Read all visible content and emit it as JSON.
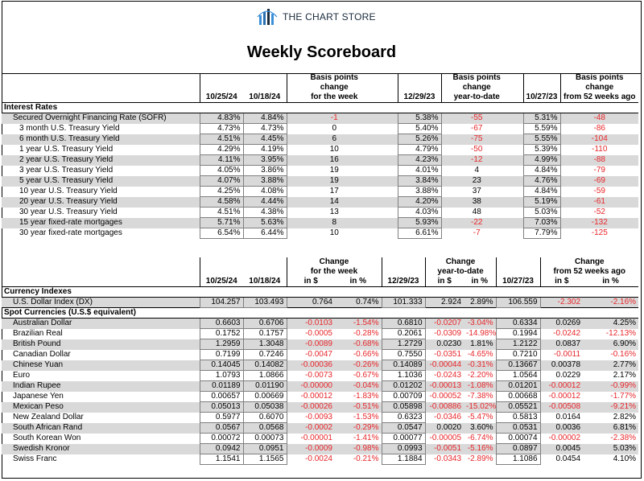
{
  "brand": {
    "name": "THE CHART STORE",
    "icon": "bar-chart-logo-icon"
  },
  "title": "Weekly Scoreboard",
  "table1": {
    "headers": {
      "col_a": "10/25/24",
      "col_b": "10/18/24",
      "bp_week_l1": "Basis points",
      "bp_week_l2": "change",
      "bp_week_l3": "for the week",
      "col_c": "12/29/23",
      "bp_ytd_l1": "Basis points",
      "bp_ytd_l2": "change",
      "bp_ytd_l3": "year-to-date",
      "col_d": "10/27/23",
      "bp_52_l1": "Basis points",
      "bp_52_l2": "change",
      "bp_52_l3": "from 52 weeks ago"
    },
    "section": "Interest Rates",
    "rows": [
      {
        "name": "Secured Overnight Financing Rate (SOFR)",
        "a": "4.83%",
        "b": "4.84%",
        "w": "-1",
        "c": "5.38%",
        "ytd": "-55",
        "d": "5.31%",
        "y52": "-48"
      },
      {
        "name": "3 month U.S. Treasury Yield",
        "a": "4.73%",
        "b": "4.73%",
        "w": "0",
        "c": "5.40%",
        "ytd": "-67",
        "d": "5.59%",
        "y52": "-86"
      },
      {
        "name": "6 month U.S. Treasury Yield",
        "a": "4.51%",
        "b": "4.45%",
        "w": "6",
        "c": "5.26%",
        "ytd": "-75",
        "d": "5.55%",
        "y52": "-104"
      },
      {
        "name": "1 year U.S. Treasury Yield",
        "a": "4.29%",
        "b": "4.19%",
        "w": "10",
        "c": "4.79%",
        "ytd": "-50",
        "d": "5.39%",
        "y52": "-110"
      },
      {
        "name": "2 year U.S. Treasury Yield",
        "a": "4.11%",
        "b": "3.95%",
        "w": "16",
        "c": "4.23%",
        "ytd": "-12",
        "d": "4.99%",
        "y52": "-88"
      },
      {
        "name": "3 year U.S. Treasury Yield",
        "a": "4.05%",
        "b": "3.86%",
        "w": "19",
        "c": "4.01%",
        "ytd": "4",
        "d": "4.84%",
        "y52": "-79"
      },
      {
        "name": "5 year U.S. Treasury Yield",
        "a": "4.07%",
        "b": "3.88%",
        "w": "19",
        "c": "3.84%",
        "ytd": "23",
        "d": "4.76%",
        "y52": "-69"
      },
      {
        "name": "10 year U.S. Treasury Yield",
        "a": "4.25%",
        "b": "4.08%",
        "w": "17",
        "c": "3.88%",
        "ytd": "37",
        "d": "4.84%",
        "y52": "-59"
      },
      {
        "name": "20 year U.S. Treasury Yield",
        "a": "4.58%",
        "b": "4.44%",
        "w": "14",
        "c": "4.20%",
        "ytd": "38",
        "d": "5.19%",
        "y52": "-61"
      },
      {
        "name": "30 year U.S. Treasury Yield",
        "a": "4.51%",
        "b": "4.38%",
        "w": "13",
        "c": "4.03%",
        "ytd": "48",
        "d": "5.03%",
        "y52": "-52"
      },
      {
        "name": "15 year fixed-rate mortgages",
        "a": "5.71%",
        "b": "5.63%",
        "w": "8",
        "c": "5.93%",
        "ytd": "-22",
        "d": "7.03%",
        "y52": "-132"
      },
      {
        "name": "30 year fixed-rate mortgages",
        "a": "6.54%",
        "b": "6.44%",
        "w": "10",
        "c": "6.61%",
        "ytd": "-7",
        "d": "7.79%",
        "y52": "-125"
      }
    ]
  },
  "table2": {
    "headers": {
      "col_a": "10/25/24",
      "col_b": "10/18/24",
      "chg_week_l1": "Change",
      "chg_week_l2": "for the week",
      "in_usd": "in $",
      "in_pct": "in %",
      "col_c": "12/29/23",
      "chg_ytd_l1": "Change",
      "chg_ytd_l2": "year-to-date",
      "col_d": "10/27/23",
      "chg_52_l1": "Change",
      "chg_52_l2": "from 52 weeks ago"
    },
    "section_indexes": "Currency Indexes",
    "dx": {
      "name": "U.S. Dollar Index (DX)",
      "a": "104.257",
      "b": "103.493",
      "wd": "0.764",
      "wp": "0.74%",
      "c": "101.333",
      "yd": "2.924",
      "yp": "2.89%",
      "d": "106.559",
      "fd": "-2.302",
      "fp": "-2.16%"
    },
    "section_spot": "Spot Currencies (U.S.$ equivalent)",
    "rows": [
      {
        "name": "Australian Dollar",
        "a": "0.6603",
        "b": "0.6706",
        "wd": "-0.0103",
        "wp": "-1.54%",
        "c": "0.6810",
        "yd": "-0.0207",
        "yp": "-3.04%",
        "d": "0.6334",
        "fd": "0.0269",
        "fp": "4.25%"
      },
      {
        "name": "Brazilian Real",
        "a": "0.1752",
        "b": "0.1757",
        "wd": "-0.0005",
        "wp": "-0.28%",
        "c": "0.2061",
        "yd": "-0.0309",
        "yp": "-14.98%",
        "d": "0.1994",
        "fd": "-0.0242",
        "fp": "-12.13%"
      },
      {
        "name": "British Pound",
        "a": "1.2959",
        "b": "1.3048",
        "wd": "-0.0089",
        "wp": "-0.68%",
        "c": "1.2729",
        "yd": "0.0230",
        "yp": "1.81%",
        "d": "1.2122",
        "fd": "0.0837",
        "fp": "6.90%"
      },
      {
        "name": "Canadian Dollar",
        "a": "0.7199",
        "b": "0.7246",
        "wd": "-0.0047",
        "wp": "-0.66%",
        "c": "0.7550",
        "yd": "-0.0351",
        "yp": "-4.65%",
        "d": "0.7210",
        "fd": "-0.0011",
        "fp": "-0.16%"
      },
      {
        "name": "Chinese Yuan",
        "a": "0.14045",
        "b": "0.14082",
        "wd": "-0.00036",
        "wp": "-0.26%",
        "c": "0.14089",
        "yd": "-0.00044",
        "yp": "-0.31%",
        "d": "0.13667",
        "fd": "0.00378",
        "fp": "2.77%"
      },
      {
        "name": "Euro",
        "a": "1.0793",
        "b": "1.0866",
        "wd": "-0.0073",
        "wp": "-0.67%",
        "c": "1.1036",
        "yd": "-0.0243",
        "yp": "-2.20%",
        "d": "1.0564",
        "fd": "0.0229",
        "fp": "2.17%"
      },
      {
        "name": "Indian Rupee",
        "a": "0.01189",
        "b": "0.01190",
        "wd": "-0.00000",
        "wp": "-0.04%",
        "c": "0.01202",
        "yd": "-0.00013",
        "yp": "-1.08%",
        "d": "0.01201",
        "fd": "-0.00012",
        "fp": "-0.99%"
      },
      {
        "name": "Japanese Yen",
        "a": "0.00657",
        "b": "0.00669",
        "wd": "-0.00012",
        "wp": "-1.83%",
        "c": "0.00709",
        "yd": "-0.00052",
        "yp": "-7.38%",
        "d": "0.00668",
        "fd": "-0.00012",
        "fp": "-1.77%"
      },
      {
        "name": "Mexican Peso",
        "a": "0.05013",
        "b": "0.05038",
        "wd": "-0.00026",
        "wp": "-0.51%",
        "c": "0.05898",
        "yd": "-0.00886",
        "yp": "-15.02%",
        "d": "0.05521",
        "fd": "-0.00508",
        "fp": "-9.21%"
      },
      {
        "name": "New Zealand Dollar",
        "a": "0.5977",
        "b": "0.6070",
        "wd": "-0.0093",
        "wp": "-1.53%",
        "c": "0.6323",
        "yd": "-0.0346",
        "yp": "-5.47%",
        "d": "0.5813",
        "fd": "0.0164",
        "fp": "2.82%"
      },
      {
        "name": "South African Rand",
        "a": "0.0567",
        "b": "0.0568",
        "wd": "-0.0002",
        "wp": "-0.29%",
        "c": "0.0547",
        "yd": "0.0020",
        "yp": "3.60%",
        "d": "0.0531",
        "fd": "0.0036",
        "fp": "6.81%"
      },
      {
        "name": "South Korean Won",
        "a": "0.00072",
        "b": "0.00073",
        "wd": "-0.00001",
        "wp": "-1.41%",
        "c": "0.00077",
        "yd": "-0.00005",
        "yp": "-6.74%",
        "d": "0.00074",
        "fd": "-0.00002",
        "fp": "-2.38%"
      },
      {
        "name": "Swedish Kronor",
        "a": "0.0942",
        "b": "0.0951",
        "wd": "-0.0009",
        "wp": "-0.98%",
        "c": "0.0993",
        "yd": "-0.0051",
        "yp": "-5.16%",
        "d": "0.0897",
        "fd": "0.0045",
        "fp": "5.03%"
      },
      {
        "name": "Swiss Franc",
        "a": "1.1541",
        "b": "1.1565",
        "wd": "-0.0024",
        "wp": "-0.21%",
        "c": "1.1884",
        "yd": "-0.0343",
        "yp": "-2.89%",
        "d": "1.1086",
        "fd": "0.0454",
        "fp": "4.10%"
      }
    ]
  },
  "colors": {
    "negative": "#e8262a",
    "shade": "#d9d9d9",
    "logo": "#3b8fd9"
  }
}
